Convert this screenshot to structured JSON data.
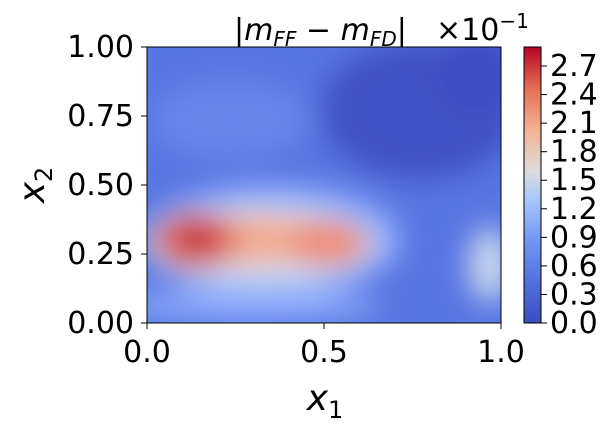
{
  "chart_data": {
    "type": "heatmap",
    "title_parts": {
      "abs_bar": "|",
      "m1": "m",
      "s1": "FF",
      "minus": " − ",
      "m2": "m",
      "s2": "FD",
      "abs_bar_end": "|"
    },
    "multiplier_parts": {
      "prefix": "×10",
      "exponent": "−1"
    },
    "xlabel": {
      "base": "x",
      "sub": "1"
    },
    "ylabel": {
      "base": "x",
      "sub": "2"
    },
    "xlim": [
      0.0,
      1.0
    ],
    "ylim": [
      0.0,
      1.0
    ],
    "x_ticks": [
      "0.0",
      "0.5",
      "1.0"
    ],
    "y_ticks": [
      "0.00",
      "0.25",
      "0.50",
      "0.75",
      "1.00"
    ],
    "colorbar": {
      "colormap": "coolwarm",
      "range": [
        0.0,
        2.9
      ],
      "ticks": [
        "0.0",
        "0.3",
        "0.6",
        "0.9",
        "1.2",
        "1.5",
        "1.8",
        "2.1",
        "2.4",
        "2.7"
      ]
    },
    "colors": {
      "low": "#3b4cc0",
      "mid": "#dddddd",
      "high": "#b40426"
    },
    "features": [
      {
        "kind": "peak",
        "x": 0.15,
        "y": 0.3,
        "value": 2.8
      },
      {
        "kind": "peak",
        "x": 0.5,
        "y": 0.28,
        "value": 2.0
      },
      {
        "kind": "bridge",
        "x": 0.33,
        "y": 0.3,
        "value": 1.9
      },
      {
        "kind": "local",
        "x": 0.97,
        "y": 0.2,
        "value": 1.2
      },
      {
        "kind": "low_region",
        "x": 0.8,
        "y": 0.8,
        "value": 0.1
      }
    ]
  }
}
